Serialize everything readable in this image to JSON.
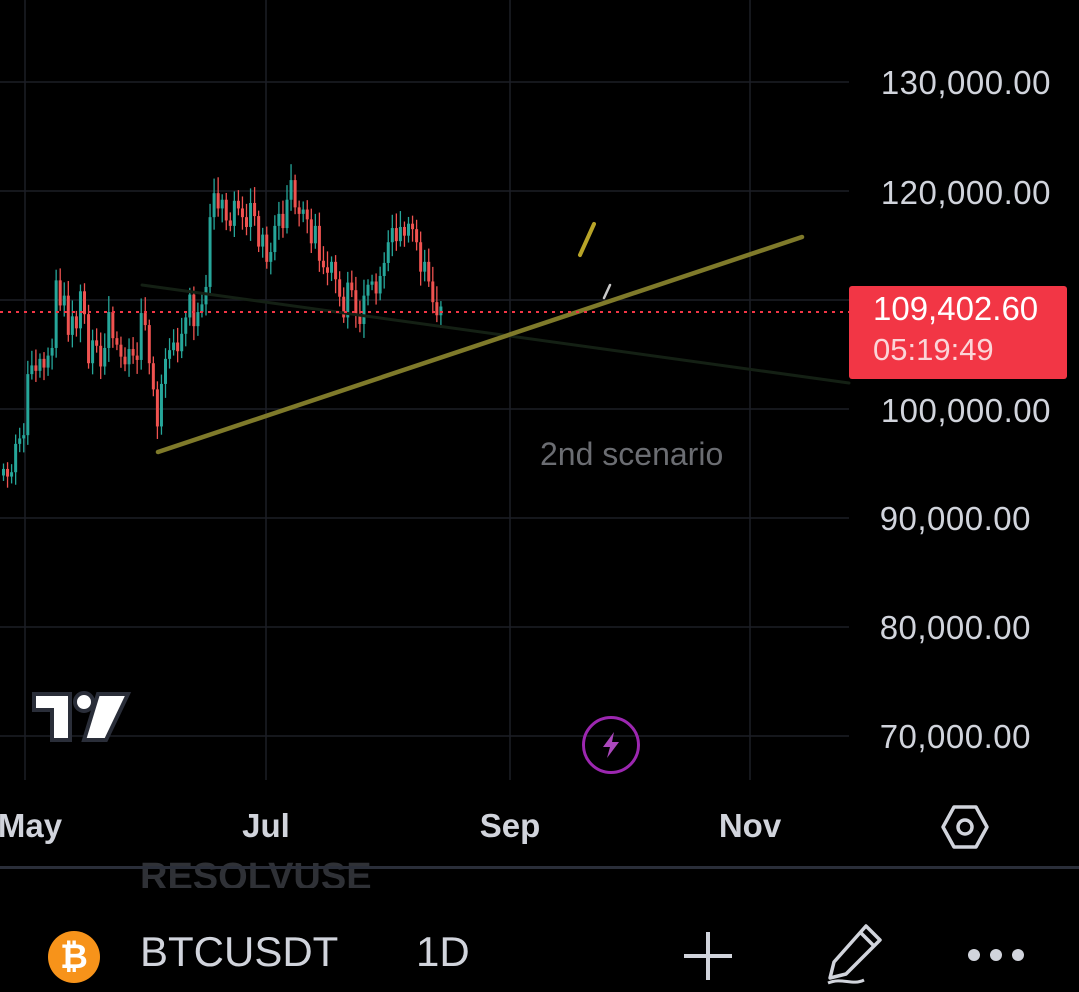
{
  "price_axis": {
    "labels": [
      "130,000.00",
      "120,000.00",
      "100,000.00",
      "90,000.00",
      "80,000.00",
      "70,000.00"
    ]
  },
  "time_axis": {
    "labels": [
      "May",
      "Jul",
      "Sep",
      "Nov"
    ]
  },
  "current_price": {
    "price": "109,402.60",
    "countdown": "05:19:49",
    "color": "#f23645"
  },
  "annotation": {
    "text": "2nd scenario"
  },
  "ghost_text": "RESOLVUSE",
  "bottom_bar": {
    "symbol": "BTCUSDT",
    "interval": "1D",
    "coin_glyph": "₿"
  },
  "icons": {
    "logo": "tradingview-logo-icon",
    "flash": "lightning-icon",
    "settings": "hexagon-settings-icon",
    "add": "plus-icon",
    "draw": "pen-icon",
    "more": "more-dots-icon"
  },
  "colors": {
    "up": "#26a69a",
    "down": "#ef5350",
    "trendline": "#7f7a2a",
    "gridline": "#1c1f26"
  },
  "chart_data": {
    "type": "candlestick",
    "symbol": "BTCUSDT",
    "interval": "1D",
    "x_axis_labels": [
      "May",
      "Jul",
      "Sep",
      "Nov"
    ],
    "y_axis_labels": [
      70000,
      80000,
      90000,
      100000,
      120000,
      130000
    ],
    "ylim": [
      66000,
      133000
    ],
    "current_price": 109402.6,
    "closes": [
      94500,
      93800,
      94200,
      96800,
      97300,
      97600,
      103200,
      104000,
      103500,
      104600,
      103800,
      104900,
      105600,
      111800,
      109500,
      110400,
      106800,
      108500,
      107400,
      110800,
      108700,
      104200,
      106300,
      105800,
      103900,
      105600,
      108900,
      106500,
      105900,
      104800,
      104100,
      105500,
      104900,
      104500,
      108800,
      107700,
      104200,
      101800,
      98400,
      102300,
      104600,
      105400,
      106100,
      105300,
      106900,
      108400,
      110500,
      107600,
      108900,
      109600,
      111200,
      117600,
      119800,
      118400,
      119200,
      117300,
      116800,
      119100,
      118400,
      117600,
      116700,
      118900,
      117700,
      114900,
      116000,
      113500,
      114400,
      116800,
      117900,
      116600,
      119200,
      121000,
      118500,
      117900,
      118300,
      117400,
      115200,
      116800,
      113600,
      113000,
      112500,
      113500,
      111900,
      110300,
      108400,
      111600,
      110900,
      108600,
      107800,
      110400,
      111400,
      111700,
      110600,
      112200,
      113400,
      115300,
      116600,
      115400,
      116700,
      115900,
      117000,
      116500,
      115300,
      112600,
      113500,
      111700,
      109800,
      108600,
      109402
    ],
    "trendlines": [
      {
        "name": "support",
        "from": {
          "index": 13,
          "price": 95800
        },
        "to": {
          "index": 150,
          "price": 115800
        }
      },
      {
        "name": "2nd-scenario",
        "from": {
          "index": 12,
          "price": 111000
        },
        "to": {
          "index": 130,
          "price": 102000
        }
      }
    ]
  }
}
